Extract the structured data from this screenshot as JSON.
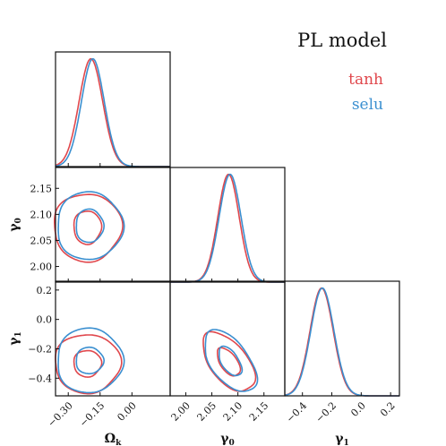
{
  "chart_data": {
    "type": "triangle-corner",
    "title": "PL model",
    "legend": {
      "placement": "top-right",
      "entries": [
        {
          "name": "tanh",
          "color": "#e0474c"
        },
        {
          "name": "selu",
          "color": "#3a8fd0"
        }
      ]
    },
    "parameters": [
      {
        "key": "omega_k",
        "label_base": "Ω",
        "label_sub": "k",
        "range": [
          -0.36,
          0.18
        ],
        "ticks": [
          -0.3,
          -0.15,
          0.0
        ],
        "tick_labels": [
          "−0.30",
          "−0.15",
          "0.00"
        ]
      },
      {
        "key": "gamma0",
        "label_base": "γ",
        "label_sub": "0",
        "range": [
          1.97,
          2.19
        ],
        "ticks": [
          2.0,
          2.05,
          2.1,
          2.15
        ],
        "tick_labels": [
          "2.00",
          "2.05",
          "2.10",
          "2.15"
        ]
      },
      {
        "key": "gamma1",
        "label_base": "γ",
        "label_sub": "1",
        "range": [
          -0.52,
          0.26
        ],
        "ticks": [
          -0.4,
          -0.2,
          0.0,
          0.2
        ],
        "tick_labels": [
          "−0.4",
          "−0.2",
          "0.0",
          "0.2"
        ]
      }
    ],
    "marginals": [
      {
        "param": 0,
        "series": [
          {
            "name": "tanh",
            "mean": -0.215,
            "sigma": 0.06,
            "skew": 0.35
          },
          {
            "name": "selu",
            "mean": -0.205,
            "sigma": 0.058,
            "skew": 0.35
          }
        ]
      },
      {
        "param": 1,
        "series": [
          {
            "name": "tanh",
            "mean": 2.082,
            "sigma": 0.0205,
            "skew": 0.0
          },
          {
            "name": "selu",
            "mean": 2.085,
            "sigma": 0.021,
            "skew": 0.0
          }
        ]
      },
      {
        "param": 2,
        "series": [
          {
            "name": "tanh",
            "mean": -0.3,
            "sigma": 0.085,
            "skew": 0.35
          },
          {
            "name": "selu",
            "mean": -0.295,
            "sigma": 0.085,
            "skew": 0.35
          }
        ]
      }
    ],
    "contours": [
      {
        "x_param": 0,
        "y_param": 1,
        "series": [
          {
            "name": "tanh",
            "cx": -0.21,
            "cy": 2.075,
            "rx68": 0.065,
            "ry68": 0.032,
            "rx95": 0.16,
            "ry95": 0.065,
            "rho": 0.0
          },
          {
            "name": "selu",
            "cx": -0.2,
            "cy": 2.078,
            "rx68": 0.065,
            "ry68": 0.032,
            "rx95": 0.155,
            "ry95": 0.065,
            "rho": 0.0
          }
        ]
      },
      {
        "x_param": 0,
        "y_param": 2,
        "series": [
          {
            "name": "tanh",
            "cx": -0.21,
            "cy": -0.3,
            "rx68": 0.065,
            "ry68": 0.09,
            "rx95": 0.155,
            "ry95": 0.2,
            "rho": 0.0
          },
          {
            "name": "selu",
            "cx": -0.2,
            "cy": -0.28,
            "rx68": 0.065,
            "ry68": 0.09,
            "rx95": 0.155,
            "ry95": 0.22,
            "rho": 0.0
          }
        ]
      },
      {
        "x_param": 1,
        "y_param": 2,
        "series": [
          {
            "name": "tanh",
            "cx": 2.082,
            "cy": -0.29,
            "rx68": 0.022,
            "ry68": 0.095,
            "rx95": 0.05,
            "ry95": 0.2,
            "rho": -0.55
          },
          {
            "name": "selu",
            "cx": 2.085,
            "cy": -0.285,
            "rx68": 0.022,
            "ry68": 0.1,
            "rx95": 0.05,
            "ry95": 0.21,
            "rho": -0.55
          }
        ]
      }
    ]
  }
}
